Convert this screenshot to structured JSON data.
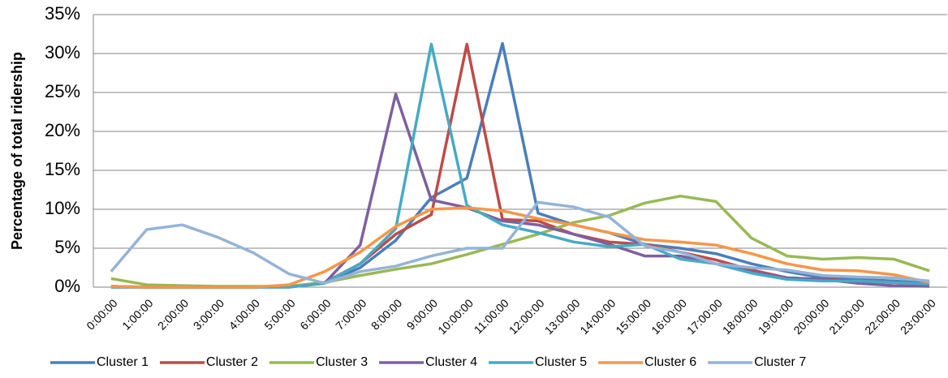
{
  "chart_data": {
    "type": "line",
    "y_label": "Percentage of total ridership",
    "categories": [
      "0:00:00",
      "1:00:00",
      "2:00:00",
      "3:00:00",
      "4:00:00",
      "5:00:00",
      "6:00:00",
      "7:00:00",
      "8:00:00",
      "9:00:00",
      "10:00:00",
      "11:00:00",
      "12:00:00",
      "13:00:00",
      "14:00:00",
      "15:00:00",
      "16:00:00",
      "17:00:00",
      "18:00:00",
      "19:00:00",
      "20:00:00",
      "21:00:00",
      "22:00:00",
      "23:00:00"
    ],
    "series": [
      {
        "name": "Cluster 1",
        "color": "#4a7ebb",
        "values": [
          0.1,
          0,
          0,
          0,
          0,
          0.1,
          0.5,
          2.5,
          6,
          11.5,
          14,
          31.3,
          9.5,
          8,
          7,
          5.5,
          5,
          4.3,
          3,
          2,
          1.2,
          1,
          0.8,
          0.5
        ]
      },
      {
        "name": "Cluster 2",
        "color": "#be4b48",
        "values": [
          0.1,
          0,
          0,
          0,
          0,
          0.1,
          0.6,
          3,
          6.8,
          9.3,
          31.2,
          8.7,
          8.5,
          6.8,
          5.8,
          5.5,
          4.5,
          3.5,
          2.2,
          1.2,
          1,
          0.8,
          0.6,
          0.4
        ]
      },
      {
        "name": "Cluster 3",
        "color": "#98b954",
        "values": [
          1.1,
          0.3,
          0.2,
          0.1,
          0.1,
          0.1,
          0.6,
          1.5,
          2.3,
          3,
          4.2,
          5.5,
          6.8,
          8.3,
          9.2,
          10.8,
          11.7,
          11,
          6.3,
          4,
          3.6,
          3.8,
          3.6,
          2.1
        ]
      },
      {
        "name": "Cluster 4",
        "color": "#7d60a0",
        "values": [
          0,
          0,
          0,
          0,
          0,
          0,
          0.5,
          5.4,
          24.8,
          11.2,
          10.2,
          8.5,
          8,
          6.8,
          5.5,
          4,
          4,
          3,
          2,
          1.2,
          1,
          0.5,
          0.2,
          0.1
        ]
      },
      {
        "name": "Cluster 5",
        "color": "#46aac5",
        "values": [
          0,
          0,
          0,
          0,
          0,
          0,
          0.5,
          3,
          7.5,
          31.2,
          10.5,
          8,
          7,
          5.8,
          5.2,
          5.5,
          3.6,
          3,
          1.8,
          1,
          0.8,
          0.8,
          0.6,
          0.4
        ]
      },
      {
        "name": "Cluster 6",
        "color": "#f79646",
        "values": [
          0.1,
          0,
          0,
          0,
          0,
          0.3,
          2,
          4.5,
          7.8,
          10,
          10.2,
          9.8,
          8.8,
          8,
          7,
          6.1,
          5.8,
          5.4,
          4.3,
          3,
          2.2,
          2.1,
          1.6,
          0.6
        ]
      },
      {
        "name": "Cluster 7",
        "color": "#95b3d7",
        "values": [
          2,
          7.4,
          8,
          6.4,
          4.4,
          1.7,
          0.5,
          2,
          2.7,
          4,
          5,
          5,
          10.9,
          10.3,
          9,
          5.3,
          4.5,
          3,
          2.5,
          2.2,
          1.5,
          1.3,
          1.2,
          0.8
        ]
      }
    ],
    "ylim": [
      0,
      35
    ],
    "yticks": [
      {
        "value": 0,
        "label": "0%"
      },
      {
        "value": 5,
        "label": "5%"
      },
      {
        "value": 10,
        "label": "10%"
      },
      {
        "value": 15,
        "label": "15%"
      },
      {
        "value": 20,
        "label": "20%"
      },
      {
        "value": 25,
        "label": "25%"
      },
      {
        "value": 30,
        "label": "30%"
      },
      {
        "value": 35,
        "label": "35%"
      }
    ],
    "grid": true,
    "legend": "bottom"
  }
}
